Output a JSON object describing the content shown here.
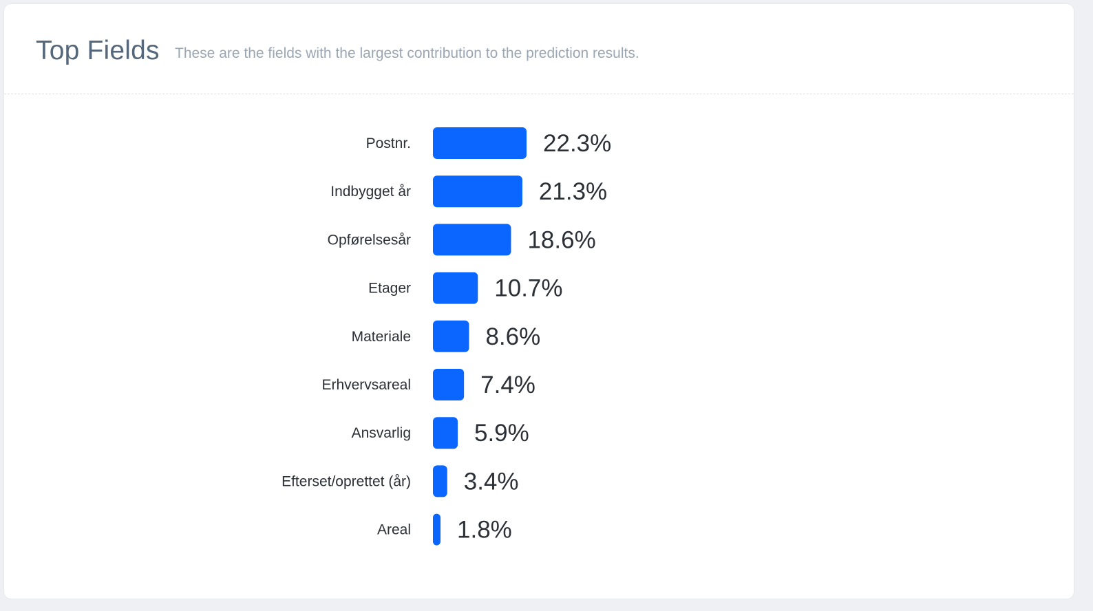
{
  "card": {
    "title": "Top Fields",
    "subtitle": "These are the fields with the largest contribution to the prediction results."
  },
  "colors": {
    "bar": "#0a66ff",
    "title": "#55677a",
    "subtitle": "#9aa6b3",
    "text": "#2b2f36"
  },
  "chart_data": {
    "type": "bar",
    "orientation": "horizontal",
    "categories": [
      "Postnr.",
      "Indbygget år",
      "Opførelsesår",
      "Etager",
      "Materiale",
      "Erhvervsareal",
      "Ansvarlig",
      "Efterset/oprettet (år)",
      "Areal"
    ],
    "values": [
      22.3,
      21.3,
      18.6,
      10.7,
      8.6,
      7.4,
      5.9,
      3.4,
      1.8
    ],
    "value_labels": [
      "22.3%",
      "21.3%",
      "18.6%",
      "10.7%",
      "8.6%",
      "7.4%",
      "5.9%",
      "3.4%",
      "1.8%"
    ],
    "unit": "%",
    "grid": false,
    "legend": "none"
  }
}
